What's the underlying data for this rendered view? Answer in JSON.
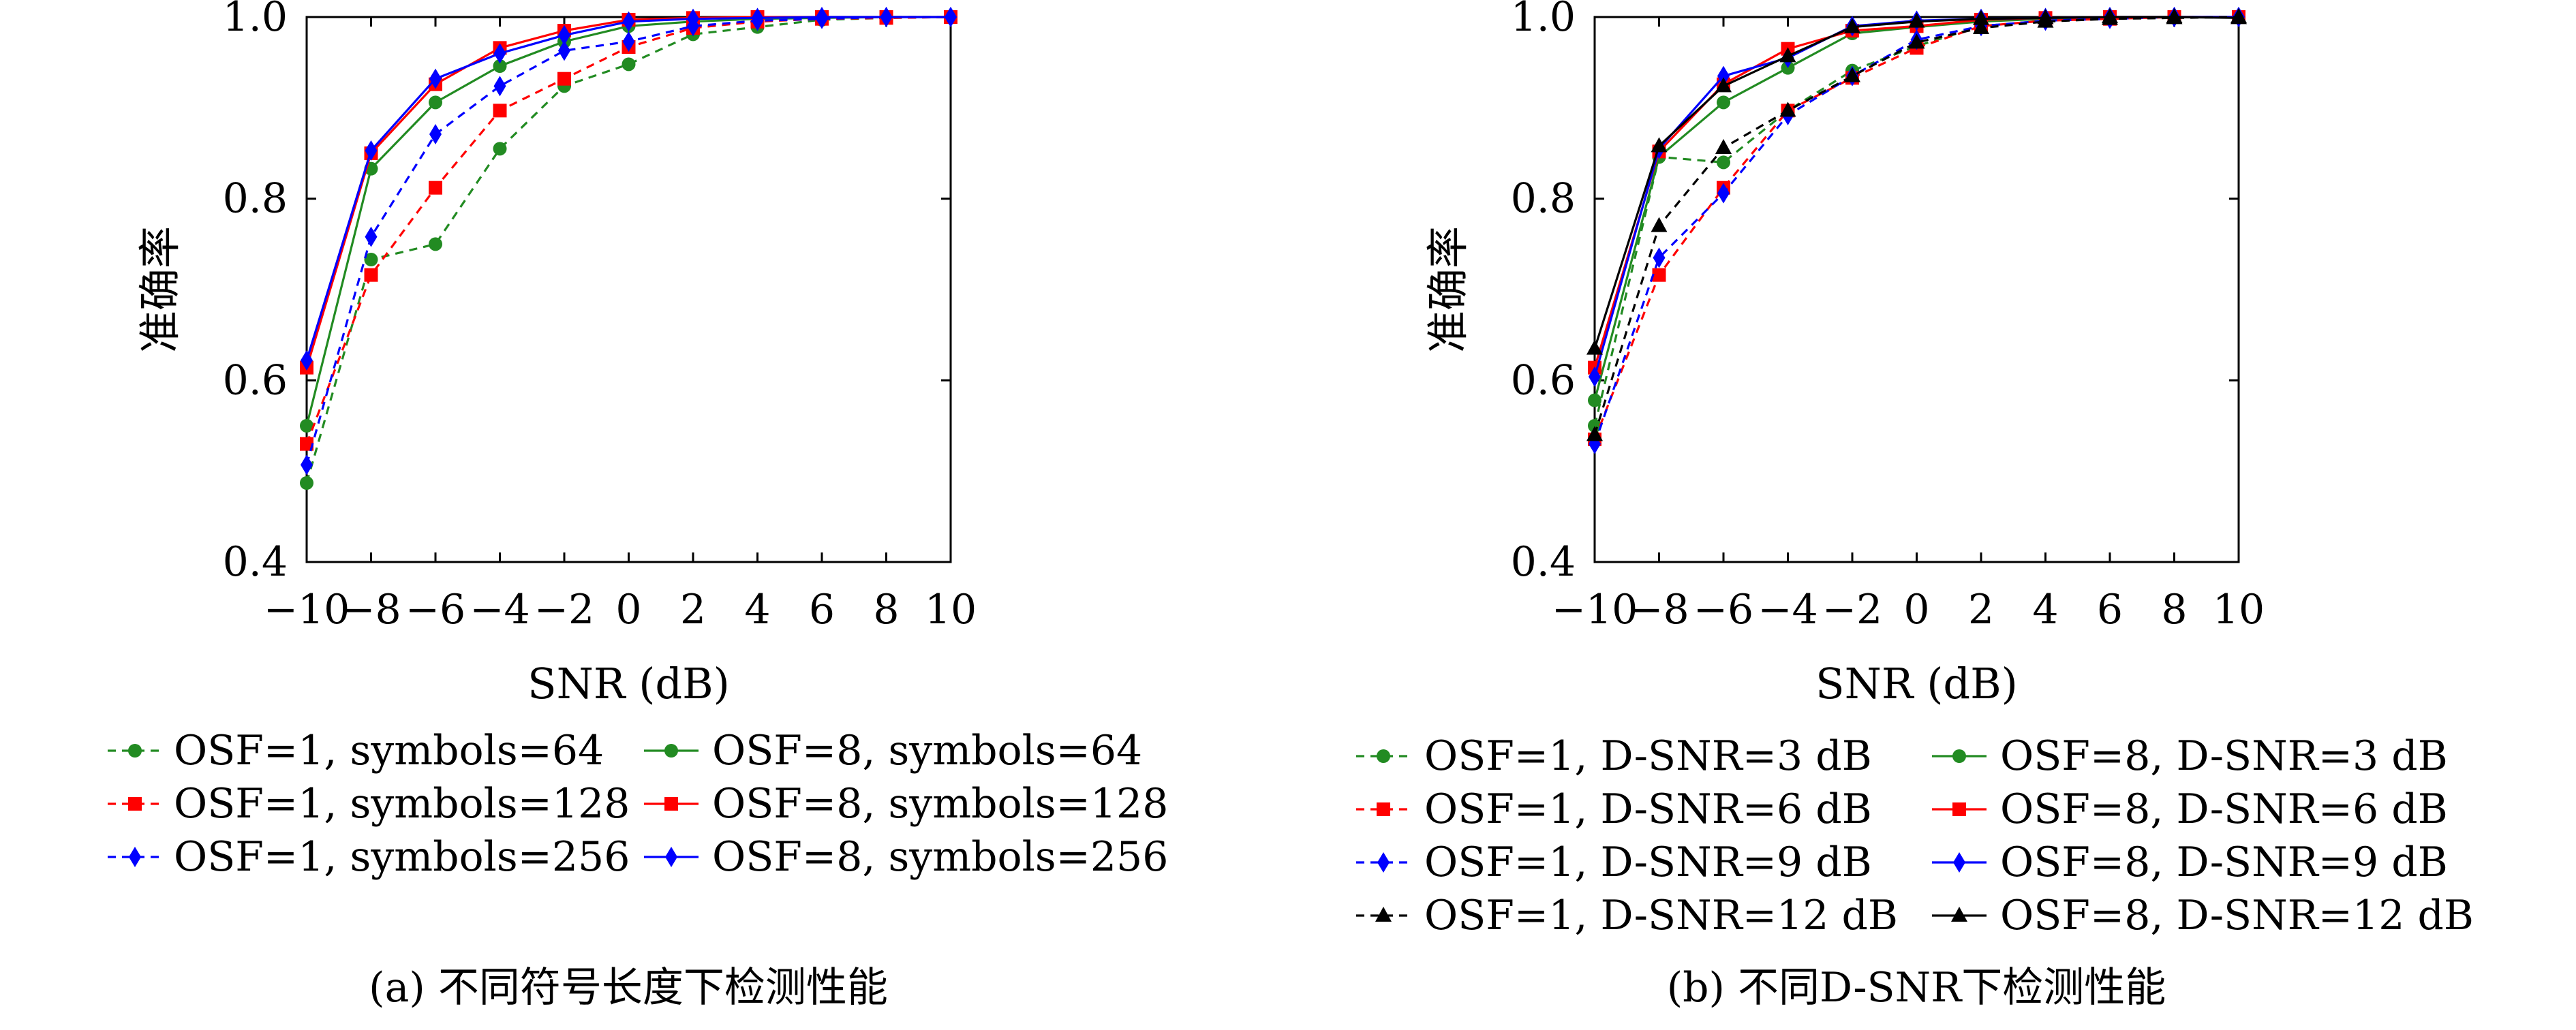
{
  "chart_data": [
    {
      "type": "line",
      "caption": "(a) 不同符号长度下检测性能",
      "xlabel": "SNR (dB)",
      "ylabel": "准确率",
      "xlim": [
        -10,
        10
      ],
      "ylim": [
        0.4,
        1.0
      ],
      "x": [
        -10,
        -8,
        -6,
        -4,
        -2,
        0,
        2,
        4,
        6,
        8,
        10
      ],
      "xticks": [
        "−10",
        "−8",
        "−6",
        "−4",
        "−2",
        "0",
        "2",
        "4",
        "6",
        "8",
        "10"
      ],
      "yticks": [
        "0.4",
        "0.6",
        "0.8",
        "1.0"
      ],
      "grid": false,
      "legend_position": "bottom",
      "series": [
        {
          "name": "OSF=1, symbols=64",
          "color": "#228b22",
          "dash": true,
          "marker": "circle",
          "values": [
            0.487,
            0.733,
            0.75,
            0.855,
            0.924,
            0.948,
            0.981,
            0.989,
            0.997,
            0.999,
            1.0
          ]
        },
        {
          "name": "OSF=8, symbols=64",
          "color": "#228b22",
          "dash": false,
          "marker": "circle",
          "values": [
            0.55,
            0.833,
            0.906,
            0.946,
            0.973,
            0.99,
            0.995,
            0.998,
            0.999,
            1.0,
            1.0
          ]
        },
        {
          "name": "OSF=1, symbols=128",
          "color": "#ff0000",
          "dash": true,
          "marker": "square",
          "values": [
            0.53,
            0.716,
            0.812,
            0.897,
            0.932,
            0.967,
            0.988,
            0.995,
            0.998,
            0.999,
            1.0
          ]
        },
        {
          "name": "OSF=8, symbols=128",
          "color": "#ff0000",
          "dash": false,
          "marker": "square",
          "values": [
            0.614,
            0.85,
            0.926,
            0.966,
            0.985,
            0.997,
            0.999,
            1.0,
            1.0,
            1.0,
            1.0
          ]
        },
        {
          "name": "OSF=1, symbols=256",
          "color": "#0000ff",
          "dash": true,
          "marker": "diamond",
          "values": [
            0.507,
            0.758,
            0.871,
            0.924,
            0.963,
            0.973,
            0.99,
            0.996,
            0.998,
            1.0,
            1.0
          ]
        },
        {
          "name": "OSF=8, symbols=256",
          "color": "#0000ff",
          "dash": false,
          "marker": "diamond",
          "values": [
            0.622,
            0.853,
            0.932,
            0.96,
            0.98,
            0.995,
            0.998,
            0.999,
            1.0,
            1.0,
            1.0
          ]
        }
      ]
    },
    {
      "type": "line",
      "caption": "(b) 不同D-SNR下检测性能",
      "xlabel": "SNR (dB)",
      "ylabel": "准确率",
      "xlim": [
        -10,
        10
      ],
      "ylim": [
        0.4,
        1.0
      ],
      "x": [
        -10,
        -8,
        -6,
        -4,
        -2,
        0,
        2,
        4,
        6,
        8,
        10
      ],
      "xticks": [
        "−10",
        "−8",
        "−6",
        "−4",
        "−2",
        "0",
        "2",
        "4",
        "6",
        "8",
        "10"
      ],
      "yticks": [
        "0.4",
        "0.6",
        "0.8",
        "1.0"
      ],
      "grid": false,
      "legend_position": "bottom",
      "series": [
        {
          "name": "OSF=1, D-SNR=3 dB",
          "color": "#228b22",
          "dash": true,
          "marker": "circle",
          "values": [
            0.55,
            0.846,
            0.84,
            0.897,
            0.941,
            0.968,
            0.99,
            0.996,
            0.998,
            1.0,
            1.0
          ]
        },
        {
          "name": "OSF=8, D-SNR=3 dB",
          "color": "#228b22",
          "dash": false,
          "marker": "circle",
          "values": [
            0.578,
            0.846,
            0.906,
            0.944,
            0.982,
            0.989,
            0.995,
            0.998,
            1.0,
            1.0,
            1.0
          ]
        },
        {
          "name": "OSF=1, D-SNR=6 dB",
          "color": "#ff0000",
          "dash": true,
          "marker": "square",
          "values": [
            0.535,
            0.716,
            0.812,
            0.897,
            0.933,
            0.966,
            0.99,
            0.996,
            0.998,
            1.0,
            1.0
          ]
        },
        {
          "name": "OSF=8, D-SNR=6 dB",
          "color": "#ff0000",
          "dash": false,
          "marker": "square",
          "values": [
            0.614,
            0.852,
            0.926,
            0.965,
            0.985,
            0.99,
            0.997,
            0.999,
            1.0,
            1.0,
            1.0
          ]
        },
        {
          "name": "OSF=1, D-SNR=9 dB",
          "color": "#0000ff",
          "dash": true,
          "marker": "diamond",
          "values": [
            0.53,
            0.735,
            0.806,
            0.892,
            0.935,
            0.975,
            0.99,
            0.996,
            0.998,
            1.0,
            1.0
          ]
        },
        {
          "name": "OSF=8, D-SNR=9 dB",
          "color": "#0000ff",
          "dash": false,
          "marker": "diamond",
          "values": [
            0.604,
            0.855,
            0.935,
            0.955,
            0.99,
            0.996,
            0.998,
            0.999,
            1.0,
            1.0,
            1.0
          ]
        },
        {
          "name": "OSF=1, D-SNR=12 dB",
          "color": "#000000",
          "dash": true,
          "marker": "triangle",
          "values": [
            0.54,
            0.77,
            0.856,
            0.897,
            0.935,
            0.972,
            0.988,
            0.995,
            0.998,
            0.999,
            1.0
          ]
        },
        {
          "name": "OSF=8, D-SNR=12 dB",
          "color": "#000000",
          "dash": false,
          "marker": "triangle",
          "values": [
            0.635,
            0.858,
            0.924,
            0.957,
            0.989,
            0.995,
            0.998,
            0.999,
            1.0,
            1.0,
            0.999
          ]
        }
      ]
    }
  ]
}
